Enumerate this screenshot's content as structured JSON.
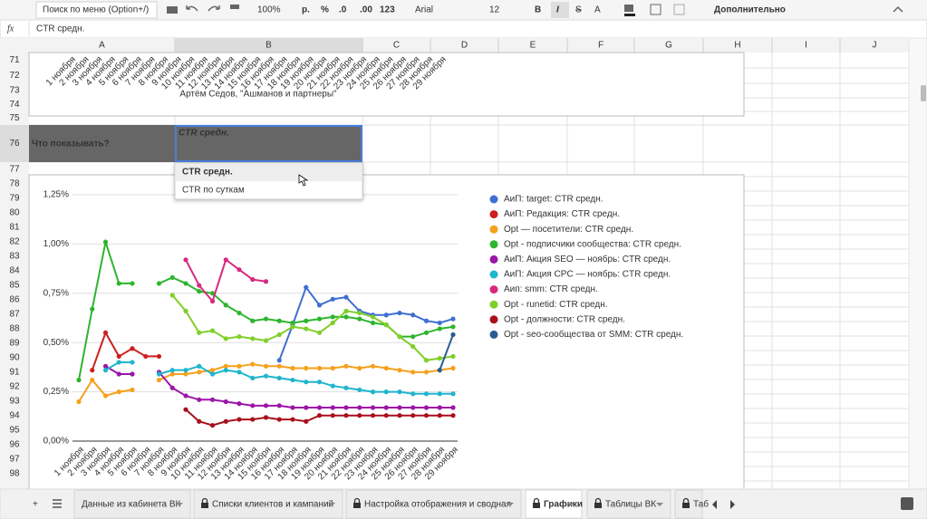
{
  "toolbar": {
    "search": "Поиск по меню (Option+/)",
    "zoom": "100%",
    "currency": "р.",
    "percent": "%",
    "decrease_decimals": ".0",
    "increase_decimals": ".00",
    "format": "123",
    "font": "Arial",
    "font_size": "12",
    "bold": "B",
    "italic": "I",
    "strike": "S",
    "text_color": "A",
    "more": "Дополнительно"
  },
  "formula_bar": {
    "fx": "fx",
    "content": "CTR средн."
  },
  "columns": [
    "A",
    "B",
    "C",
    "D",
    "E",
    "F",
    "G",
    "H",
    "I",
    "J"
  ],
  "rows": [
    71,
    72,
    73,
    74,
    75,
    76,
    77,
    78,
    79,
    80,
    81,
    82,
    83,
    84,
    85,
    86,
    87,
    88,
    89,
    90,
    91,
    92,
    93,
    94,
    95,
    96,
    97,
    98
  ],
  "cells": {
    "a76": "Что показывать?",
    "b76": "CTR средн.",
    "author": "Артём Седов, \"Ашманов и партнеры\""
  },
  "dropdown": [
    "CTR средн.",
    "CTR по суткам"
  ],
  "tabs": [
    "Данные из кабинета ВК",
    "Списки клиентов и кампаний",
    "Настройка отображения и сводная",
    "Графики",
    "Таблицы ВК",
    "Таб"
  ],
  "chart_data": {
    "type": "line",
    "categories": [
      "1 ноября",
      "2 ноября",
      "3 ноября",
      "4 ноября",
      "5 ноября",
      "6 ноября",
      "7 ноября",
      "8 ноября",
      "9 ноября",
      "10 ноября",
      "11 ноября",
      "12 ноября",
      "13 ноября",
      "14 ноября",
      "15 ноября",
      "16 ноября",
      "17 ноября",
      "18 ноября",
      "19 ноября",
      "20 ноября",
      "21 ноября",
      "22 ноября",
      "23 ноября",
      "24 ноября",
      "25 ноября",
      "26 ноября",
      "27 ноября",
      "28 ноября",
      "29 ноября"
    ],
    "ylim": [
      0,
      1.25
    ],
    "yticks": [
      {
        "value": 0,
        "label": "0,00%"
      },
      {
        "value": 0.25,
        "label": "0,25%"
      },
      {
        "value": 0.5,
        "label": "0,50%"
      },
      {
        "value": 0.75,
        "label": "0,75%"
      },
      {
        "value": 1,
        "label": "1,00%"
      },
      {
        "value": 1.25,
        "label": "1,25%"
      }
    ],
    "grid": true,
    "series": [
      {
        "name": "АиП: target: CTR средн.",
        "color": "#3f6fd1",
        "values": [
          null,
          null,
          null,
          null,
          null,
          null,
          null,
          null,
          null,
          null,
          null,
          null,
          null,
          null,
          null,
          0.41,
          0.59,
          0.78,
          0.69,
          0.72,
          0.73,
          0.66,
          0.64,
          0.64,
          0.65,
          0.64,
          0.61,
          0.6,
          0.62
        ]
      },
      {
        "name": "АиП: Редакция: CTR средн.",
        "color": "#cc1f1f",
        "values": [
          null,
          0.36,
          0.55,
          0.43,
          0.47,
          0.43,
          0.43,
          null,
          null,
          null,
          null,
          null,
          null,
          null,
          null,
          null,
          null,
          null,
          null,
          null,
          null,
          null,
          null,
          null,
          null,
          null,
          null,
          null,
          null
        ]
      },
      {
        "name": "Opt — посетители: CTR средн.",
        "color": "#f5a11c",
        "values": [
          0.2,
          0.31,
          0.23,
          0.25,
          0.26,
          null,
          0.31,
          0.34,
          0.34,
          0.35,
          0.36,
          0.38,
          0.38,
          0.39,
          0.38,
          0.38,
          0.37,
          0.37,
          0.37,
          0.37,
          0.38,
          0.37,
          0.38,
          0.37,
          0.36,
          0.35,
          0.35,
          0.36,
          0.37
        ]
      },
      {
        "name": "Opt - подписчики сообщества: CTR средн.",
        "color": "#2db52d",
        "values": [
          0.31,
          0.67,
          1.01,
          0.8,
          0.8,
          null,
          0.8,
          0.83,
          0.8,
          0.76,
          0.75,
          0.69,
          0.65,
          0.61,
          0.62,
          0.61,
          0.6,
          0.61,
          0.62,
          0.63,
          0.63,
          0.62,
          0.6,
          0.59,
          0.53,
          0.53,
          0.55,
          0.57,
          0.58
        ]
      },
      {
        "name": "АиП: Акция SEO — ноябрь: CTR средн.",
        "color": "#9b16a8",
        "values": [
          null,
          null,
          0.38,
          0.34,
          0.34,
          null,
          0.35,
          0.27,
          0.23,
          0.21,
          0.21,
          0.2,
          0.19,
          0.18,
          0.18,
          0.18,
          0.17,
          0.17,
          0.17,
          0.17,
          0.17,
          0.17,
          0.17,
          0.17,
          0.17,
          0.17,
          0.17,
          0.17,
          0.17
        ]
      },
      {
        "name": "АиП: Акция CPC — ноябрь: CTR средн.",
        "color": "#1fb5cc",
        "values": [
          null,
          null,
          0.36,
          0.4,
          0.4,
          null,
          0.34,
          0.36,
          0.36,
          0.38,
          0.34,
          0.36,
          0.35,
          0.32,
          0.33,
          0.32,
          0.31,
          0.3,
          0.3,
          0.28,
          0.27,
          0.26,
          0.25,
          0.25,
          0.25,
          0.24,
          0.24,
          0.24,
          0.24
        ]
      },
      {
        "name": "Аип: smm: CTR средн.",
        "color": "#d8287f",
        "values": [
          null,
          null,
          null,
          null,
          null,
          null,
          null,
          null,
          0.92,
          0.79,
          0.71,
          0.92,
          0.87,
          0.82,
          0.81,
          null,
          null,
          null,
          null,
          null,
          null,
          null,
          null,
          null,
          null,
          null,
          null,
          null,
          null
        ]
      },
      {
        "name": "Opt - runetid: CTR средн.",
        "color": "#7fcf2a",
        "values": [
          null,
          null,
          null,
          null,
          null,
          null,
          null,
          0.74,
          0.66,
          0.55,
          0.56,
          0.52,
          0.53,
          0.52,
          0.51,
          0.54,
          0.58,
          0.57,
          0.55,
          0.6,
          0.66,
          0.65,
          0.63,
          0.59,
          0.53,
          0.48,
          0.41,
          0.42,
          0.43
        ]
      },
      {
        "name": "Opt - должности: CTR средн.",
        "color": "#a8101c",
        "values": [
          null,
          null,
          null,
          null,
          null,
          null,
          null,
          null,
          0.16,
          0.1,
          0.08,
          0.1,
          0.11,
          0.11,
          0.12,
          0.11,
          0.11,
          0.1,
          0.13,
          0.13,
          0.13,
          0.13,
          0.13,
          0.13,
          0.13,
          0.13,
          0.13,
          0.13,
          0.13
        ]
      },
      {
        "name": "Opt - seo-сообщества от SMM: CTR средн.",
        "color": "#2a5c8f",
        "values": [
          null,
          null,
          null,
          null,
          null,
          null,
          null,
          null,
          null,
          null,
          null,
          null,
          null,
          null,
          null,
          null,
          null,
          null,
          null,
          null,
          null,
          null,
          null,
          null,
          null,
          null,
          null,
          0.36,
          0.54
        ]
      }
    ]
  }
}
